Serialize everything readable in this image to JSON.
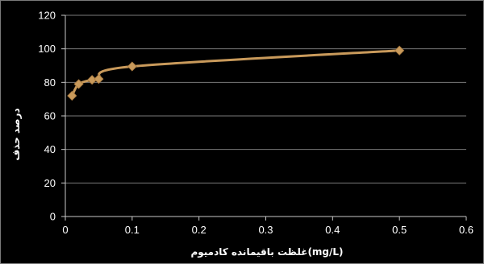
{
  "chart_data": {
    "type": "line",
    "title": "",
    "xlabel": "غلظت باقیمانده کادمیوم(mg/L)",
    "ylabel": "درصد حذف",
    "xlim": [
      0,
      0.6
    ],
    "ylim": [
      0,
      120
    ],
    "x_ticks": [
      "0",
      "0.1",
      "0.2",
      "0.3",
      "0.4",
      "0.5",
      "0.6"
    ],
    "y_ticks": [
      "0",
      "20",
      "40",
      "60",
      "80",
      "100",
      "120"
    ],
    "grid": "horizontal",
    "legend": "none",
    "series": [
      {
        "color": "#c99a5b",
        "smooth": true,
        "marker": "diamond",
        "points": [
          {
            "x": 0.01,
            "y": 72
          },
          {
            "x": 0.02,
            "y": 79
          },
          {
            "x": 0.04,
            "y": 81.5
          },
          {
            "x": 0.05,
            "y": 82
          },
          {
            "x": 0.1,
            "y": 89.5
          },
          {
            "x": 0.5,
            "y": 99
          }
        ]
      }
    ],
    "colors": {
      "background": "#000000",
      "axis": "#c8c8c8",
      "grid": "#7a7a7a",
      "text": "#ffffff"
    }
  }
}
